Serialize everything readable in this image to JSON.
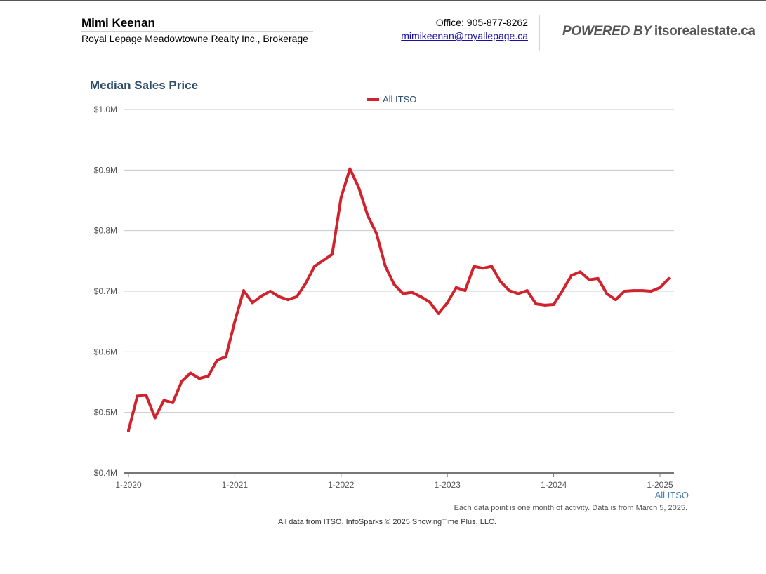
{
  "header": {
    "agent_name": "Mimi Keenan",
    "brokerage": "Royal Lepage Meadowtowne Realty Inc., Brokerage",
    "office_phone": "Office: 905-877-8262",
    "email": "mimikeenan@royallepage.ca",
    "powered_by": "POWERED BY",
    "powered_site": "itsorealestate.ca"
  },
  "chart_data": {
    "type": "line",
    "title": "Median Sales Price",
    "legend_position": "top-center",
    "series_color": "#d0232d",
    "ylim": [
      400000,
      1000000
    ],
    "y_ticks": [
      {
        "value": 1000000,
        "label": "$1.0M"
      },
      {
        "value": 900000,
        "label": "$0.9M"
      },
      {
        "value": 800000,
        "label": "$0.8M"
      },
      {
        "value": 700000,
        "label": "$0.7M"
      },
      {
        "value": 600000,
        "label": "$0.6M"
      },
      {
        "value": 500000,
        "label": "$0.5M"
      },
      {
        "value": 400000,
        "label": "$0.4M"
      }
    ],
    "x_ticks": [
      "1-2020",
      "1-2021",
      "1-2022",
      "1-2023",
      "1-2024",
      "1-2025"
    ],
    "grid": true,
    "series": [
      {
        "name": "All ITSO",
        "x": [
          "1-2020",
          "2-2020",
          "3-2020",
          "4-2020",
          "5-2020",
          "6-2020",
          "7-2020",
          "8-2020",
          "9-2020",
          "10-2020",
          "11-2020",
          "12-2020",
          "1-2021",
          "2-2021",
          "3-2021",
          "4-2021",
          "5-2021",
          "6-2021",
          "7-2021",
          "8-2021",
          "9-2021",
          "10-2021",
          "11-2021",
          "12-2021",
          "1-2022",
          "2-2022",
          "3-2022",
          "4-2022",
          "5-2022",
          "6-2022",
          "7-2022",
          "8-2022",
          "9-2022",
          "10-2022",
          "11-2022",
          "12-2022",
          "1-2023",
          "2-2023",
          "3-2023",
          "4-2023",
          "5-2023",
          "6-2023",
          "7-2023",
          "8-2023",
          "9-2023",
          "10-2023",
          "11-2023",
          "12-2023",
          "1-2024",
          "2-2024",
          "3-2024",
          "4-2024",
          "5-2024",
          "6-2024",
          "7-2024",
          "8-2024",
          "9-2024",
          "10-2024",
          "11-2024",
          "12-2024",
          "1-2025",
          "2-2025"
        ],
        "values": [
          470000,
          527000,
          528000,
          491000,
          520000,
          516000,
          551000,
          565000,
          556000,
          560000,
          586000,
          592000,
          650000,
          701000,
          681000,
          692000,
          700000,
          691000,
          686000,
          691000,
          713000,
          741000,
          751000,
          761000,
          855000,
          902000,
          871000,
          825000,
          795000,
          741000,
          711000,
          696000,
          698000,
          691000,
          682000,
          663000,
          681000,
          706000,
          701000,
          741000,
          738000,
          741000,
          716000,
          701000,
          696000,
          701000,
          679000,
          677000,
          678000,
          701000,
          726000,
          732000,
          719000,
          721000,
          696000,
          686000,
          700000,
          701000,
          701000,
          700000,
          706000,
          721000
        ]
      }
    ]
  },
  "footer": {
    "series_label": "All ITSO",
    "note": "Each data point is one month of activity. Data is from March 5, 2025.",
    "credits": "All data from ITSO. InfoSparks © 2025 ShowingTime Plus, LLC."
  }
}
